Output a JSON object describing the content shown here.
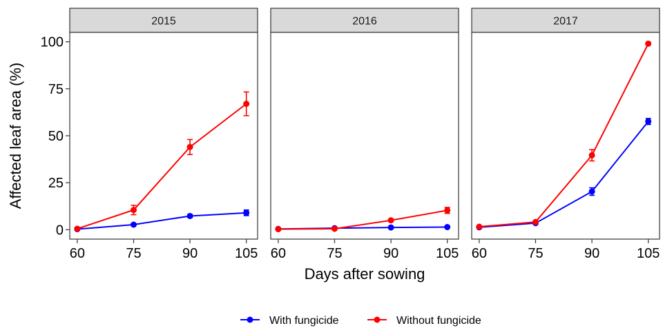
{
  "chart_data": {
    "type": "line",
    "facet_by": "year",
    "facets": [
      {
        "label": "2015",
        "series": [
          {
            "name": "With fungicide",
            "x": [
              60,
              75,
              90,
              105
            ],
            "y": [
              0.3,
              2.7,
              7.3,
              9.0
            ],
            "err": [
              0.6,
              0.6,
              0.8,
              1.5
            ]
          },
          {
            "name": "Without fungicide",
            "x": [
              60,
              75,
              90,
              105
            ],
            "y": [
              0.5,
              10.5,
              44.0,
              67.0
            ],
            "err": [
              0.8,
              2.5,
              4.0,
              6.3
            ]
          }
        ]
      },
      {
        "label": "2016",
        "series": [
          {
            "name": "With fungicide",
            "x": [
              60,
              75,
              90,
              105
            ],
            "y": [
              0.4,
              0.8,
              1.2,
              1.4
            ],
            "err": [
              0.3,
              0.3,
              0.3,
              0.4
            ]
          },
          {
            "name": "Without fungicide",
            "x": [
              60,
              75,
              90,
              105
            ],
            "y": [
              0.3,
              0.5,
              5.0,
              10.3
            ],
            "err": [
              0.3,
              0.3,
              0.6,
              1.6
            ]
          }
        ]
      },
      {
        "label": "2017",
        "series": [
          {
            "name": "With fungicide",
            "x": [
              60,
              75,
              90,
              105
            ],
            "y": [
              1.3,
              3.5,
              20.3,
              57.6
            ],
            "err": [
              0.4,
              0.5,
              2.0,
              1.6
            ]
          },
          {
            "name": "Without fungicide",
            "x": [
              60,
              75,
              90,
              105
            ],
            "y": [
              1.6,
              4.1,
              39.6,
              99.0
            ],
            "err": [
              0.4,
              0.5,
              3.0,
              0.6
            ]
          }
        ]
      }
    ],
    "xlabel": "Days after sowing",
    "ylabel": "Affected leaf area (%)",
    "xticks": [
      60,
      75,
      90,
      105
    ],
    "yticks": [
      0,
      25,
      50,
      75,
      100
    ],
    "xlim": [
      58,
      108
    ],
    "ylim": [
      -5,
      105
    ],
    "colors": {
      "With fungicide": "#0000ff",
      "Without fungicide": "#ff0000"
    },
    "legend": {
      "position": "bottom",
      "entries": [
        "With fungicide",
        "Without fungicide"
      ]
    },
    "grid": false
  }
}
